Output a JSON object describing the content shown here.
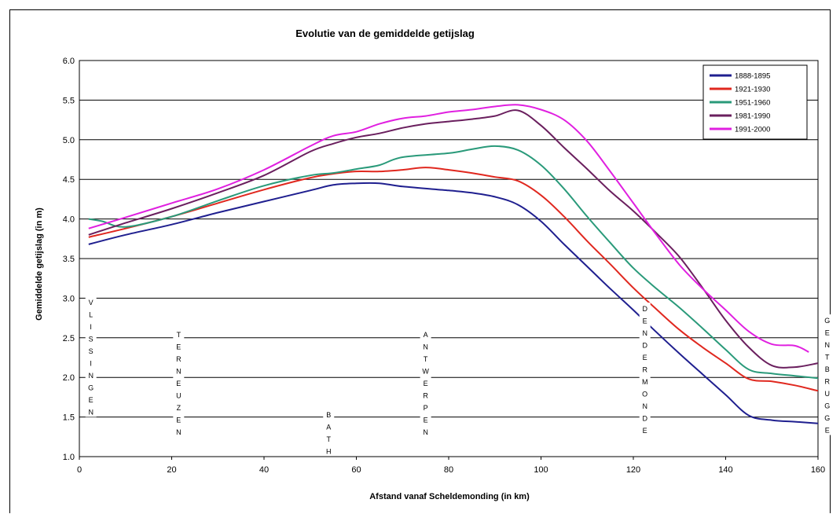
{
  "chart_data": {
    "type": "line",
    "title": "Evolutie van de gemiddelde getijslag",
    "xlabel": "Afstand vanaf Scheldemonding (in km)",
    "ylabel": "Gemiddelde getijslag (in m)",
    "xlim": [
      0,
      160
    ],
    "ylim": [
      1.0,
      6.0
    ],
    "x_ticks": [
      "0",
      "20",
      "40",
      "60",
      "80",
      "100",
      "120",
      "140",
      "160"
    ],
    "y_ticks": [
      "1.0",
      "1.5",
      "2.0",
      "2.5",
      "3.0",
      "3.5",
      "4.0",
      "4.5",
      "5.0",
      "5.5",
      "6.0"
    ],
    "grid": "horizontal",
    "legend_position": "top-right",
    "series": [
      {
        "name": "1888-1895",
        "color": "#1f1f8f",
        "points": [
          [
            2,
            3.68
          ],
          [
            10,
            3.8
          ],
          [
            20,
            3.93
          ],
          [
            30,
            4.08
          ],
          [
            40,
            4.22
          ],
          [
            50,
            4.36
          ],
          [
            55,
            4.43
          ],
          [
            60,
            4.45
          ],
          [
            65,
            4.45
          ],
          [
            70,
            4.41
          ],
          [
            80,
            4.36
          ],
          [
            85,
            4.33
          ],
          [
            90,
            4.28
          ],
          [
            95,
            4.18
          ],
          [
            100,
            3.97
          ],
          [
            105,
            3.68
          ],
          [
            110,
            3.4
          ],
          [
            115,
            3.12
          ],
          [
            120,
            2.85
          ],
          [
            125,
            2.57
          ],
          [
            130,
            2.3
          ],
          [
            135,
            2.04
          ],
          [
            140,
            1.78
          ],
          [
            145,
            1.52
          ],
          [
            150,
            1.46
          ],
          [
            155,
            1.44
          ],
          [
            160,
            1.42
          ]
        ]
      },
      {
        "name": "1921-1930",
        "color": "#e0281f",
        "points": [
          [
            2,
            3.77
          ],
          [
            10,
            3.88
          ],
          [
            20,
            4.03
          ],
          [
            30,
            4.2
          ],
          [
            40,
            4.37
          ],
          [
            50,
            4.52
          ],
          [
            55,
            4.57
          ],
          [
            60,
            4.6
          ],
          [
            65,
            4.6
          ],
          [
            70,
            4.62
          ],
          [
            75,
            4.65
          ],
          [
            80,
            4.62
          ],
          [
            85,
            4.58
          ],
          [
            90,
            4.53
          ],
          [
            95,
            4.48
          ],
          [
            100,
            4.3
          ],
          [
            105,
            4.03
          ],
          [
            110,
            3.72
          ],
          [
            115,
            3.43
          ],
          [
            120,
            3.13
          ],
          [
            125,
            2.86
          ],
          [
            130,
            2.6
          ],
          [
            135,
            2.38
          ],
          [
            140,
            2.18
          ],
          [
            145,
            1.98
          ],
          [
            150,
            1.95
          ],
          [
            155,
            1.9
          ],
          [
            160,
            1.83
          ]
        ]
      },
      {
        "name": "1951-1960",
        "color": "#2a9a7a",
        "points": [
          [
            2,
            4.0
          ],
          [
            5,
            3.97
          ],
          [
            10,
            3.9
          ],
          [
            20,
            4.03
          ],
          [
            30,
            4.23
          ],
          [
            40,
            4.42
          ],
          [
            50,
            4.55
          ],
          [
            55,
            4.58
          ],
          [
            60,
            4.63
          ],
          [
            65,
            4.68
          ],
          [
            70,
            4.78
          ],
          [
            80,
            4.83
          ],
          [
            85,
            4.88
          ],
          [
            90,
            4.92
          ],
          [
            95,
            4.87
          ],
          [
            100,
            4.68
          ],
          [
            105,
            4.38
          ],
          [
            110,
            4.03
          ],
          [
            115,
            3.7
          ],
          [
            120,
            3.38
          ],
          [
            125,
            3.12
          ],
          [
            130,
            2.88
          ],
          [
            135,
            2.62
          ],
          [
            140,
            2.35
          ],
          [
            145,
            2.1
          ],
          [
            150,
            2.05
          ],
          [
            155,
            2.02
          ],
          [
            160,
            1.99
          ]
        ]
      },
      {
        "name": "1981-1990",
        "color": "#6a1f5e",
        "points": [
          [
            2,
            3.8
          ],
          [
            10,
            3.95
          ],
          [
            20,
            4.13
          ],
          [
            30,
            4.33
          ],
          [
            40,
            4.55
          ],
          [
            50,
            4.85
          ],
          [
            55,
            4.95
          ],
          [
            60,
            5.03
          ],
          [
            65,
            5.08
          ],
          [
            70,
            5.15
          ],
          [
            75,
            5.2
          ],
          [
            80,
            5.23
          ],
          [
            85,
            5.26
          ],
          [
            90,
            5.3
          ],
          [
            95,
            5.37
          ],
          [
            100,
            5.18
          ],
          [
            105,
            4.9
          ],
          [
            110,
            4.63
          ],
          [
            115,
            4.35
          ],
          [
            120,
            4.1
          ],
          [
            125,
            3.82
          ],
          [
            130,
            3.52
          ],
          [
            135,
            3.13
          ],
          [
            140,
            2.72
          ],
          [
            145,
            2.38
          ],
          [
            150,
            2.15
          ],
          [
            155,
            2.13
          ],
          [
            160,
            2.18
          ]
        ]
      },
      {
        "name": "1991-2000",
        "color": "#e020e0",
        "points": [
          [
            2,
            3.88
          ],
          [
            10,
            4.02
          ],
          [
            20,
            4.2
          ],
          [
            30,
            4.38
          ],
          [
            40,
            4.62
          ],
          [
            50,
            4.92
          ],
          [
            55,
            5.05
          ],
          [
            60,
            5.1
          ],
          [
            65,
            5.2
          ],
          [
            70,
            5.27
          ],
          [
            75,
            5.3
          ],
          [
            80,
            5.35
          ],
          [
            85,
            5.38
          ],
          [
            90,
            5.42
          ],
          [
            95,
            5.44
          ],
          [
            100,
            5.38
          ],
          [
            105,
            5.25
          ],
          [
            110,
            4.98
          ],
          [
            115,
            4.6
          ],
          [
            120,
            4.2
          ],
          [
            125,
            3.8
          ],
          [
            130,
            3.42
          ],
          [
            135,
            3.12
          ],
          [
            140,
            2.85
          ],
          [
            145,
            2.58
          ],
          [
            150,
            2.42
          ],
          [
            155,
            2.4
          ],
          [
            158,
            2.32
          ]
        ]
      }
    ],
    "location_labels": [
      {
        "text": "VLISSINGEN",
        "x": 2.5,
        "letters": [
          "V",
          "L",
          "I",
          "S",
          "S",
          "I",
          "N",
          "G",
          "E",
          "N"
        ]
      },
      {
        "text": "TERNEUZEN",
        "x": 21.5,
        "letters": [
          "T",
          "E",
          "R",
          "N",
          "E",
          "U",
          "Z",
          "E",
          "N"
        ]
      },
      {
        "text": "BATH",
        "x": 54,
        "letters": [
          "B",
          "A",
          "T",
          "H"
        ]
      },
      {
        "text": "ANTWERPEN",
        "x": 75,
        "letters": [
          "A",
          "N",
          "T",
          "W",
          "E",
          "R",
          "P",
          "E",
          "N"
        ]
      },
      {
        "text": "DENDERMONDE",
        "x": 122.5,
        "letters": [
          "D",
          "E",
          "N",
          "D",
          "E",
          "R",
          "M",
          "O",
          "N",
          "D",
          "E"
        ]
      },
      {
        "text": "GENTBRUGGE",
        "x": 162,
        "letters": [
          "G",
          "E",
          "N",
          "T",
          "B",
          "R",
          "U",
          "G",
          "G",
          "E"
        ]
      }
    ]
  }
}
